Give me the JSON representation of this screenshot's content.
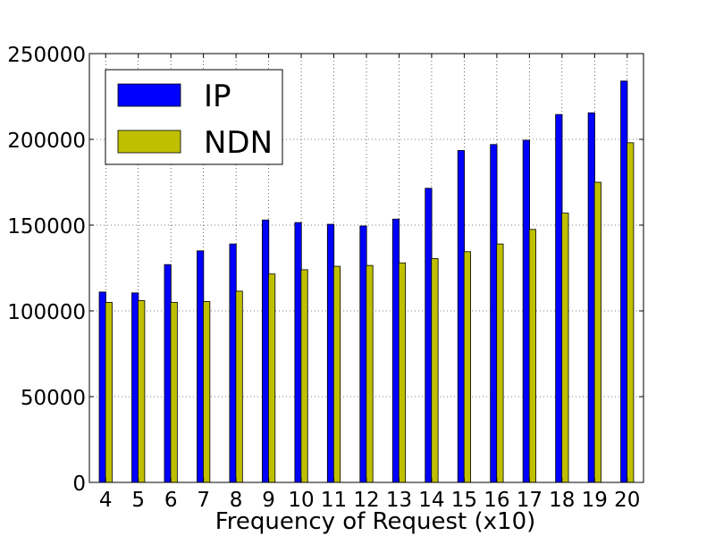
{
  "chart_data": {
    "type": "bar",
    "xlabel": "Frequency of Request (x10)",
    "ylabel": "",
    "categories": [
      "4",
      "5",
      "6",
      "7",
      "8",
      "9",
      "10",
      "11",
      "12",
      "13",
      "14",
      "15",
      "16",
      "17",
      "18",
      "19",
      "20"
    ],
    "series": [
      {
        "name": "IP",
        "color": "#0000ff",
        "values": [
          111000,
          110500,
          127000,
          135000,
          139000,
          153000,
          151500,
          150500,
          149500,
          153500,
          171500,
          193500,
          197000,
          199500,
          214500,
          215500,
          234000
        ]
      },
      {
        "name": "NDN",
        "color": "#bfbf00",
        "values": [
          105000,
          106000,
          105000,
          105500,
          111500,
          121500,
          124000,
          126000,
          126500,
          128000,
          130500,
          134500,
          139000,
          147500,
          157000,
          175000,
          198000
        ]
      }
    ],
    "ylim": [
      0,
      250000
    ],
    "yticks": [
      0,
      50000,
      100000,
      150000,
      200000,
      250000
    ],
    "ytick_labels": [
      "0",
      "50000",
      "100000",
      "150000",
      "200000",
      "250000"
    ],
    "grid": true,
    "legend_position": "top-left"
  }
}
